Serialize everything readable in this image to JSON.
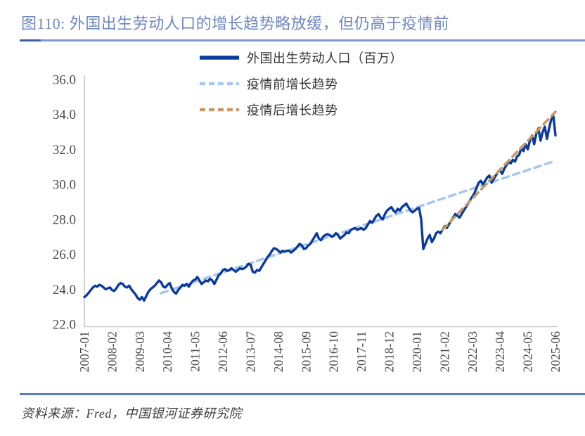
{
  "header": {
    "title": "图110:  外国出生劳动人口的增长趋势略放缓，但仍高于疫情前"
  },
  "footer": {
    "source": "资料来源：Fred，中国银河证券研究院"
  },
  "chart_data": {
    "type": "line",
    "title": "图110: 外国出生劳动人口的增长趋势略放缓，但仍高于疫情前",
    "xlabel": "",
    "ylabel": "",
    "ylim": [
      22,
      36
    ],
    "grid": false,
    "legend_position": "top-center",
    "y_ticks": [
      "22.0",
      "24.0",
      "26.0",
      "28.0",
      "30.0",
      "32.0",
      "34.0",
      "36.0"
    ],
    "x_start": "2007-01",
    "x_tick_step_months": 13,
    "x_tick_labels": [
      "2007-01",
      "2008-02",
      "2009-03",
      "2010-04",
      "2011-05",
      "2012-06",
      "2013-07",
      "2014-08",
      "2015-09",
      "2016-10",
      "2017-11",
      "2018-12",
      "2020-01",
      "2021-02",
      "2022-03",
      "2023-04",
      "2024-05",
      "2025-06"
    ],
    "series": [
      {
        "name": "外国出生劳动人口（百万）",
        "color": "#0A3A9C",
        "style": "solid",
        "values": [
          23.55,
          23.65,
          23.8,
          23.95,
          24.1,
          24.2,
          24.15,
          24.25,
          24.2,
          24.1,
          24.0,
          24.05,
          24.1,
          23.95,
          23.9,
          24.05,
          24.25,
          24.35,
          24.3,
          24.15,
          24.1,
          24.2,
          24.0,
          23.85,
          23.7,
          23.5,
          23.4,
          23.55,
          23.35,
          23.6,
          23.85,
          24.0,
          24.1,
          24.2,
          24.35,
          24.5,
          24.4,
          24.15,
          24.1,
          24.25,
          24.35,
          24.05,
          23.85,
          23.75,
          23.95,
          24.1,
          24.25,
          24.2,
          24.3,
          24.15,
          24.35,
          24.5,
          24.55,
          24.7,
          24.5,
          24.3,
          24.4,
          24.5,
          24.45,
          24.6,
          24.5,
          24.3,
          24.55,
          24.8,
          24.9,
          25.1,
          25.15,
          25.05,
          25.1,
          25.2,
          25.1,
          25.0,
          25.1,
          25.2,
          25.15,
          25.2,
          25.3,
          25.45,
          25.4,
          25.0,
          24.95,
          25.1,
          25.05,
          25.25,
          25.45,
          25.65,
          25.85,
          26.0,
          26.2,
          26.35,
          26.3,
          26.2,
          26.1,
          26.2,
          26.15,
          26.2,
          26.2,
          26.1,
          26.2,
          26.3,
          26.45,
          26.6,
          26.5,
          26.3,
          26.35,
          26.5,
          26.6,
          26.8,
          27.0,
          27.2,
          26.9,
          26.8,
          27.0,
          27.1,
          27.15,
          27.1,
          27.0,
          27.05,
          27.2,
          27.1,
          26.9,
          27.0,
          27.1,
          27.25,
          27.2,
          27.4,
          27.45,
          27.5,
          27.4,
          27.45,
          27.5,
          27.4,
          27.5,
          27.7,
          27.9,
          27.8,
          28.0,
          28.2,
          28.3,
          28.1,
          28.0,
          28.3,
          28.5,
          28.6,
          28.7,
          28.5,
          28.4,
          28.6,
          28.5,
          28.7,
          28.8,
          28.9,
          28.7,
          28.5,
          28.4,
          28.5,
          28.6,
          28.65,
          28.0,
          26.3,
          26.6,
          26.9,
          27.1,
          26.7,
          26.9,
          27.2,
          27.3,
          27.2,
          27.4,
          27.6,
          27.5,
          27.7,
          27.9,
          28.1,
          28.3,
          28.2,
          28.1,
          28.3,
          28.5,
          28.7,
          28.9,
          29.1,
          29.3,
          29.5,
          29.8,
          30.1,
          30.2,
          30.0,
          30.2,
          30.4,
          30.5,
          30.1,
          30.3,
          30.5,
          30.7,
          30.8,
          30.6,
          30.9,
          31.1,
          31.3,
          31.2,
          31.4,
          31.3,
          31.6,
          31.7,
          32.1,
          31.9,
          32.3,
          32.0,
          32.5,
          32.8,
          32.3,
          32.9,
          33.2,
          32.5,
          33.0,
          33.3,
          32.6,
          33.2,
          33.7,
          33.9,
          32.8
        ]
      }
    ],
    "trends": [
      {
        "name": "疫情前增长趋势",
        "color": "#A9C7EE",
        "style": "dashed",
        "from": [
          36,
          23.78
        ],
        "to": [
          221,
          31.35
        ]
      },
      {
        "name": "疫情后增长趋势",
        "color": "#C59A66",
        "style": "dashed",
        "from": [
          168,
          27.4
        ],
        "to": [
          221,
          34.15
        ]
      }
    ]
  }
}
